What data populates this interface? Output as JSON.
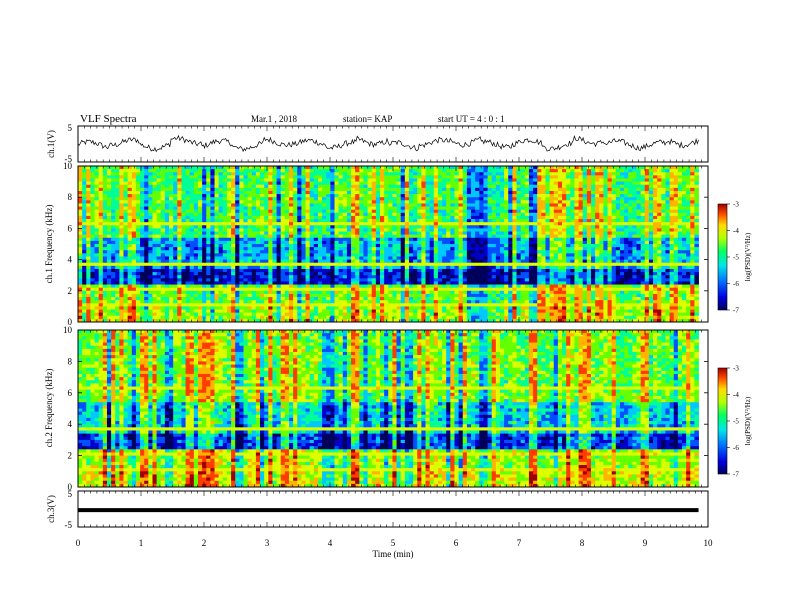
{
  "header": {
    "title": "VLF Spectra",
    "date": "Mar.1 , 2018",
    "station": "station= KAP",
    "start_time": "start UT = 4 : 0 : 1"
  },
  "chart_data": [
    {
      "type": "line",
      "panel": "ch1-waveform",
      "ylabel": "ch.1(V)",
      "ylim": [
        -5,
        5
      ],
      "yticks": [
        "5",
        "-5"
      ],
      "x_range_min": [
        0,
        9.85
      ],
      "description_of_trace": "noisy waveform oscillating roughly between -2 and 2 V",
      "trace_level_v": [
        -0.2,
        0.4,
        -0.5,
        0.8,
        0.1,
        -0.6,
        0.5,
        0.2,
        -0.3,
        0.7,
        -0.4,
        0.3,
        0.6,
        -0.1,
        0.4,
        -0.5,
        0.9,
        0.0,
        -0.3,
        0.5
      ]
    },
    {
      "type": "heatmap",
      "panel": "ch1-spectrogram",
      "ylabel": "ch.1 Frequency (kHz)",
      "ylim": [
        0,
        10
      ],
      "yticks": [
        "0",
        "2",
        "4",
        "6",
        "8",
        "10"
      ],
      "colorbar": {
        "label": "log(PSD)(V²/Hz)",
        "range": [
          -7,
          -3
        ],
        "ticks": [
          "-3",
          "-4",
          "-5",
          "-6",
          "-7"
        ]
      }
    },
    {
      "type": "heatmap",
      "panel": "ch2-spectrogram",
      "ylabel": "ch.2 Frequency (kHz)",
      "ylim": [
        0,
        10
      ],
      "yticks": [
        "0",
        "2",
        "4",
        "6",
        "8",
        "10"
      ],
      "colorbar": {
        "label": "log(PSD)(V²/Hz)",
        "range": [
          -7,
          -3
        ],
        "ticks": [
          "-3",
          "-4",
          "-5",
          "-6",
          "-7"
        ]
      }
    },
    {
      "type": "line",
      "panel": "ch3-waveform",
      "ylabel": "ch.3(V)",
      "ylim": [
        -5,
        5
      ],
      "yticks": [
        "5",
        "0",
        "-5"
      ],
      "trace_level_v": -0.3
    }
  ],
  "xaxis": {
    "label": "Time (min)",
    "xlim": [
      0,
      10
    ],
    "ticks": [
      "0",
      "1",
      "2",
      "3",
      "4",
      "5",
      "6",
      "7",
      "8",
      "9",
      "10"
    ]
  },
  "colors": {
    "colormap": [
      "#00005a",
      "#0000c8",
      "#0050ff",
      "#00c8ff",
      "#00ff96",
      "#64ff00",
      "#dcff00",
      "#ffb400",
      "#ff3c00",
      "#a00000"
    ]
  }
}
